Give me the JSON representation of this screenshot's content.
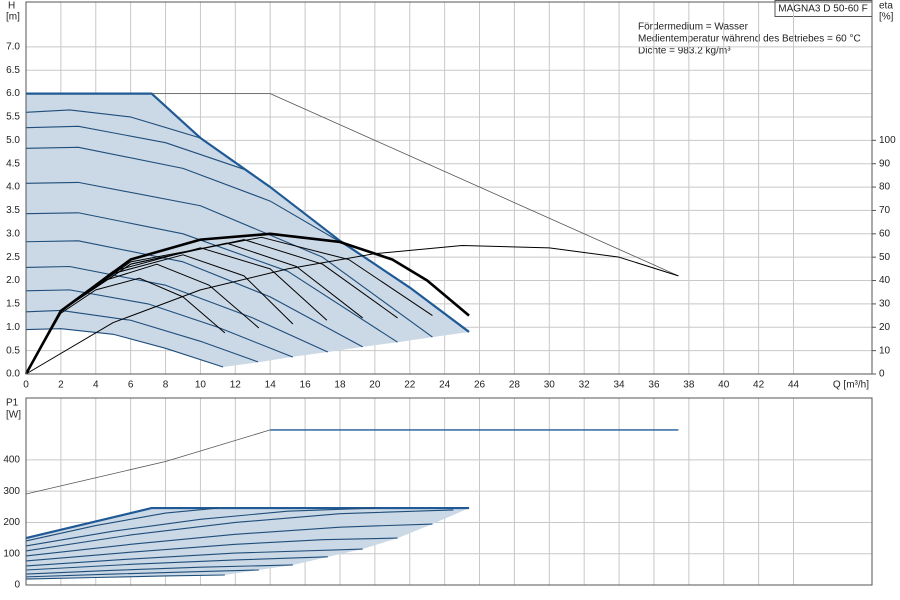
{
  "chart_data": [
    {
      "type": "line",
      "subtitle": "MAGNA3 D 50-60 F",
      "annotations": [
        "Fördermedium = Wasser",
        "Medientemperatur während des Betriebes = 60 °C",
        "Dichte = 983.2 kg/m³"
      ],
      "ylabel": "H",
      "yunit": "[m]",
      "y2label": "eta",
      "y2unit": "[%]",
      "xlabel": "Q [m³/h]",
      "xlim": [
        0,
        48.5
      ],
      "xticks": [
        0,
        2,
        4,
        6,
        8,
        10,
        12,
        14,
        16,
        18,
        20,
        22,
        24,
        26,
        28,
        30,
        32,
        34,
        36,
        38,
        40,
        42,
        44
      ],
      "ylim": [
        0,
        7.96
      ],
      "yticks": [
        {
          "value": 0,
          "label": "0.0"
        },
        0.5,
        {
          "value": 1,
          "label": "1.0"
        },
        1.5,
        {
          "value": 2,
          "label": "2.0"
        },
        2.5,
        {
          "value": 3,
          "label": "3.0"
        },
        3.5,
        {
          "value": 4,
          "label": "4.0"
        },
        4.5,
        {
          "value": 5,
          "label": "5.0"
        },
        5.5,
        {
          "value": 6,
          "label": "6.0"
        },
        6.5,
        {
          "value": 7,
          "label": "7.0"
        }
      ],
      "y2lim": [
        0,
        159.2
      ],
      "y2ticks": [
        0,
        10,
        20,
        30,
        40,
        50,
        60,
        70,
        80,
        90,
        100
      ],
      "grid": true,
      "area_color": "#cbd8e6",
      "series": [
        {
          "color": "#1f5a96",
          "width": 2.2,
          "area": "top",
          "x": [
            0,
            7.2,
            10,
            14,
            18,
            22,
            25.4
          ],
          "values": [
            6.0,
            6.0,
            5.05,
            4.0,
            2.85,
            1.85,
            0.9
          ]
        },
        {
          "color": "#1f5a96",
          "width": 0,
          "area": "bottom",
          "x": [
            11.3,
            13.3,
            15.3,
            17.3,
            19.3,
            21.3,
            23.3,
            25.4
          ],
          "values": [
            0.15,
            0.25,
            0.37,
            0.47,
            0.58,
            0.68,
            0.79,
            0.9
          ]
        },
        {
          "color": "#555555",
          "width": 0.8,
          "x": [
            7.2,
            14,
            37.4
          ],
          "values": [
            6.0,
            6.0,
            2.1
          ]
        },
        {
          "color": "#1f4e7a",
          "width": 1.1,
          "x": [
            0,
            2.5,
            6,
            10
          ],
          "values": [
            5.6,
            5.65,
            5.5,
            5.05
          ]
        },
        {
          "color": "#1f4e7a",
          "width": 1.1,
          "x": [
            0,
            3,
            8,
            12.5
          ],
          "values": [
            5.27,
            5.3,
            4.95,
            4.38
          ]
        },
        {
          "color": "#1f4e7a",
          "width": 1.1,
          "x": [
            0,
            3,
            9,
            14,
            18.5
          ],
          "values": [
            4.83,
            4.85,
            4.4,
            3.7,
            2.72
          ]
        },
        {
          "color": "#1f4e7a",
          "width": 1.1,
          "x": [
            0,
            3,
            10,
            17,
            23.3
          ],
          "values": [
            4.08,
            4.1,
            3.6,
            2.5,
            0.79
          ]
        },
        {
          "color": "#1f4e7a",
          "width": 1.1,
          "x": [
            0,
            3,
            9,
            15,
            21.3
          ],
          "values": [
            3.43,
            3.45,
            3.0,
            2.2,
            0.68
          ]
        },
        {
          "color": "#1f4e7a",
          "width": 1.1,
          "x": [
            0,
            3,
            9,
            14,
            19.3
          ],
          "values": [
            2.83,
            2.85,
            2.4,
            1.65,
            0.58
          ]
        },
        {
          "color": "#1f4e7a",
          "width": 1.1,
          "x": [
            0,
            2.5,
            8,
            13,
            17.3
          ],
          "values": [
            2.28,
            2.3,
            1.9,
            1.2,
            0.47
          ]
        },
        {
          "color": "#1f4e7a",
          "width": 1.1,
          "x": [
            0,
            2.5,
            7,
            11,
            15.3
          ],
          "values": [
            1.78,
            1.8,
            1.5,
            1.0,
            0.36
          ]
        },
        {
          "color": "#1f4e7a",
          "width": 1.1,
          "x": [
            0,
            2,
            6,
            10,
            13.3
          ],
          "values": [
            1.33,
            1.36,
            1.15,
            0.7,
            0.26
          ]
        },
        {
          "color": "#1f4e7a",
          "width": 1.1,
          "area": "start",
          "x": [
            0,
            2,
            5,
            8,
            11.3
          ],
          "values": [
            0.95,
            0.97,
            0.85,
            0.55,
            0.15
          ]
        },
        {
          "color": "#000000",
          "width": 1,
          "axis": "y2",
          "x": [
            0,
            5,
            10,
            15,
            20,
            25,
            30,
            34,
            37.4
          ],
          "values": [
            0,
            22,
            36,
            45,
            51.5,
            55,
            54,
            50,
            42
          ]
        },
        {
          "color": "#000000",
          "width": 1,
          "axis": "y2",
          "x": [
            0,
            2,
            4,
            6.5,
            9,
            11.4
          ],
          "values": [
            0,
            26,
            36,
            41,
            33,
            17.6
          ]
        },
        {
          "color": "#000000",
          "width": 1,
          "axis": "y2",
          "x": [
            0,
            2,
            4.5,
            7.5,
            10.5,
            13.35
          ],
          "values": [
            0,
            27,
            40,
            47,
            38,
            19.7
          ]
        },
        {
          "color": "#000000",
          "width": 1,
          "axis": "y2",
          "x": [
            0,
            2,
            5,
            9,
            12.5,
            15.3
          ],
          "values": [
            0,
            27,
            43,
            51,
            42,
            21.4
          ]
        },
        {
          "color": "#000000",
          "width": 1,
          "axis": "y2",
          "x": [
            0,
            2,
            5,
            10,
            14,
            17.25
          ],
          "values": [
            0,
            27,
            44,
            54,
            45,
            23
          ]
        },
        {
          "color": "#000000",
          "width": 1,
          "axis": "y2",
          "x": [
            0,
            2,
            6,
            11.5,
            15.5,
            19.3
          ],
          "values": [
            0,
            27,
            47,
            56,
            46,
            24
          ]
        },
        {
          "color": "#000000",
          "width": 1,
          "axis": "y2",
          "x": [
            0,
            2,
            6,
            12.5,
            17,
            21.3
          ],
          "values": [
            0,
            27,
            47,
            57.5,
            47,
            24
          ]
        },
        {
          "color": "#000000",
          "width": 1,
          "axis": "y2",
          "x": [
            0,
            2,
            6,
            13.5,
            18.5,
            23.3
          ],
          "values": [
            0,
            27,
            48,
            58.5,
            49,
            25
          ]
        },
        {
          "color": "#000000",
          "width": 2.6,
          "axis": "y2",
          "x": [
            0,
            2,
            6,
            10,
            14,
            18,
            21,
            23,
            25.4
          ],
          "values": [
            0,
            27,
            49,
            57.5,
            60,
            56.5,
            49,
            40,
            25
          ]
        }
      ]
    },
    {
      "type": "line",
      "ylabel": "P1",
      "yunit": "[W]",
      "ylim": [
        0,
        598
      ],
      "yticks": [
        0,
        100,
        200,
        300,
        400
      ],
      "grid": true,
      "area_color": "#cbd8e6",
      "series": [
        {
          "color": "#1f5a96",
          "width": 2.2,
          "area": "top",
          "x": [
            0,
            7.2,
            25.4
          ],
          "values": [
            150,
            246,
            246
          ]
        },
        {
          "color": "#1f5a96",
          "width": 0,
          "area": "bottom",
          "x": [
            11.4,
            13.35,
            15.3,
            17.3,
            19.3,
            21.3,
            23.3,
            25.4
          ],
          "values": [
            32,
            48,
            64,
            90,
            115,
            150,
            195,
            246
          ]
        },
        {
          "color": "#555555",
          "width": 0.8,
          "x": [
            0,
            8,
            14
          ],
          "values": [
            291,
            395,
            496
          ]
        },
        {
          "color": "#1f5a96",
          "width": 1.4,
          "x": [
            14,
            37.4
          ],
          "values": [
            496,
            496
          ]
        },
        {
          "color": "#1f4e7a",
          "width": 1.1,
          "x": [
            0,
            4,
            8,
            11
          ],
          "values": [
            141,
            190,
            230,
            246
          ]
        },
        {
          "color": "#1f4e7a",
          "width": 1.1,
          "x": [
            0,
            5,
            10,
            15,
            20
          ],
          "values": [
            125,
            172,
            210,
            236,
            246
          ]
        },
        {
          "color": "#1f4e7a",
          "width": 1.1,
          "x": [
            0,
            6,
            12,
            18,
            24.5
          ],
          "values": [
            109,
            160,
            200,
            228,
            240
          ]
        },
        {
          "color": "#1f4e7a",
          "width": 1.1,
          "x": [
            0,
            6,
            12,
            18,
            23.3
          ],
          "values": [
            93,
            130,
            162,
            185,
            195
          ]
        },
        {
          "color": "#1f4e7a",
          "width": 1.1,
          "x": [
            0,
            6,
            12,
            17,
            21.3
          ],
          "values": [
            77,
            105,
            130,
            145,
            150
          ]
        },
        {
          "color": "#1f4e7a",
          "width": 1.1,
          "x": [
            0,
            6,
            12,
            19.3
          ],
          "values": [
            61,
            83,
            102,
            115
          ]
        },
        {
          "color": "#1f4e7a",
          "width": 1.1,
          "x": [
            0,
            6,
            12,
            17.3
          ],
          "values": [
            48,
            66,
            80,
            90
          ]
        },
        {
          "color": "#1f4e7a",
          "width": 1.1,
          "x": [
            0,
            5,
            10,
            15.3
          ],
          "values": [
            35,
            47,
            57,
            64
          ]
        },
        {
          "color": "#1f4e7a",
          "width": 1.1,
          "x": [
            0,
            5,
            10,
            13.35
          ],
          "values": [
            26,
            35,
            43,
            48
          ]
        },
        {
          "color": "#1f4e7a",
          "width": 1.1,
          "area": "start",
          "x": [
            0,
            4,
            8,
            11.4
          ],
          "values": [
            19,
            24,
            29,
            32
          ]
        }
      ]
    }
  ]
}
